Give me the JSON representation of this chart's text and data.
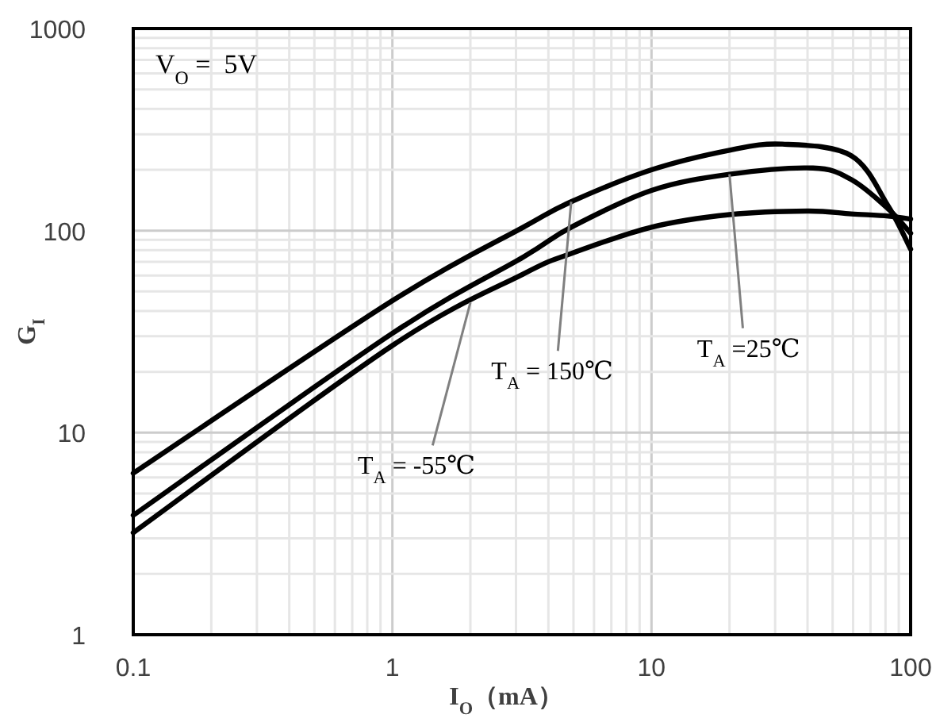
{
  "chart_data": {
    "type": "line",
    "xlabel": "I$_{O}$（mA）",
    "ylabel": "G$_{I}$",
    "log": "xy",
    "xlim": [
      0.1,
      100
    ],
    "ylim": [
      1,
      1000
    ],
    "xticks": [
      0.1,
      1,
      10,
      100
    ],
    "yticks": [
      1,
      10,
      100,
      1000
    ],
    "grid": true,
    "marker": "none",
    "line_style": "solid",
    "series": [
      {
        "color": "#000000",
        "x": [
          0.1,
          1,
          3.2,
          4.9,
          10,
          20,
          32,
          59,
          82,
          100
        ],
        "values": [
          6.3,
          45,
          104,
          139,
          200,
          250,
          268,
          235,
          132,
          81
        ]
      },
      {
        "color": "#000000",
        "x": [
          0.1,
          1,
          3.2,
          4.9,
          10,
          20,
          42,
          59,
          82,
          100
        ],
        "values": [
          3.9,
          31,
          74,
          104,
          158,
          190,
          204,
          179,
          128,
          97
        ]
      },
      {
        "color": "#000000",
        "x": [
          0.1,
          1,
          3.2,
          4.9,
          10,
          20,
          40,
          59,
          82,
          100
        ],
        "values": [
          3.2,
          27,
          61,
          77,
          104,
          120,
          125,
          121,
          118,
          114
        ]
      }
    ],
    "annotations": [
      "V$_{O}$ =  5V",
      {
        "text": "T$_{A}$ = 150℃",
        "x": 4.9,
        "y": 139
      },
      {
        "text": "T$_{A}$ =25℃",
        "x": 20,
        "y": 190
      },
      {
        "text": "T$_{A}$ = -55℃",
        "x": 2,
        "y": 44
      }
    ]
  }
}
